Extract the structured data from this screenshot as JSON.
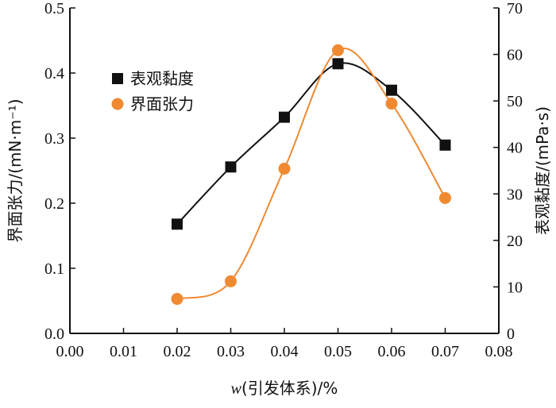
{
  "colors": {
    "viscosity": "#111111",
    "tension": "#ef8a33",
    "axis": "#111111"
  },
  "chart_data": {
    "type": "line",
    "x": [
      0.02,
      0.03,
      0.04,
      0.05,
      0.06,
      0.07
    ],
    "xlabel_italic": "w",
    "xlabel_rest": "(引发体系)/%",
    "xlim": [
      0.0,
      0.08
    ],
    "xticks": [
      "0.00",
      "0.01",
      "0.02",
      "0.03",
      "0.04",
      "0.05",
      "0.06",
      "0.07",
      "0.08"
    ],
    "ylabel_left": "界面张力/(mN·m⁻¹)",
    "ylim_left": [
      0.0,
      0.5
    ],
    "yticks_left": [
      "0.0",
      "0.1",
      "0.2",
      "0.3",
      "0.4",
      "0.5"
    ],
    "ylabel_right": "表观黏度/(mPa·s)",
    "ylim_right": [
      0,
      70
    ],
    "yticks_right": [
      "0",
      "10",
      "20",
      "30",
      "40",
      "50",
      "60",
      "70"
    ],
    "legend_position": "upper-left",
    "grid": false,
    "series": [
      {
        "name": "表观黏度",
        "axis": "right",
        "marker": "square",
        "values": [
          23.5,
          35.8,
          46.5,
          58.0,
          52.3,
          40.5
        ]
      },
      {
        "name": "界面张力",
        "axis": "left",
        "marker": "circle",
        "values": [
          0.053,
          0.08,
          0.253,
          0.435,
          0.353,
          0.208
        ]
      }
    ]
  }
}
